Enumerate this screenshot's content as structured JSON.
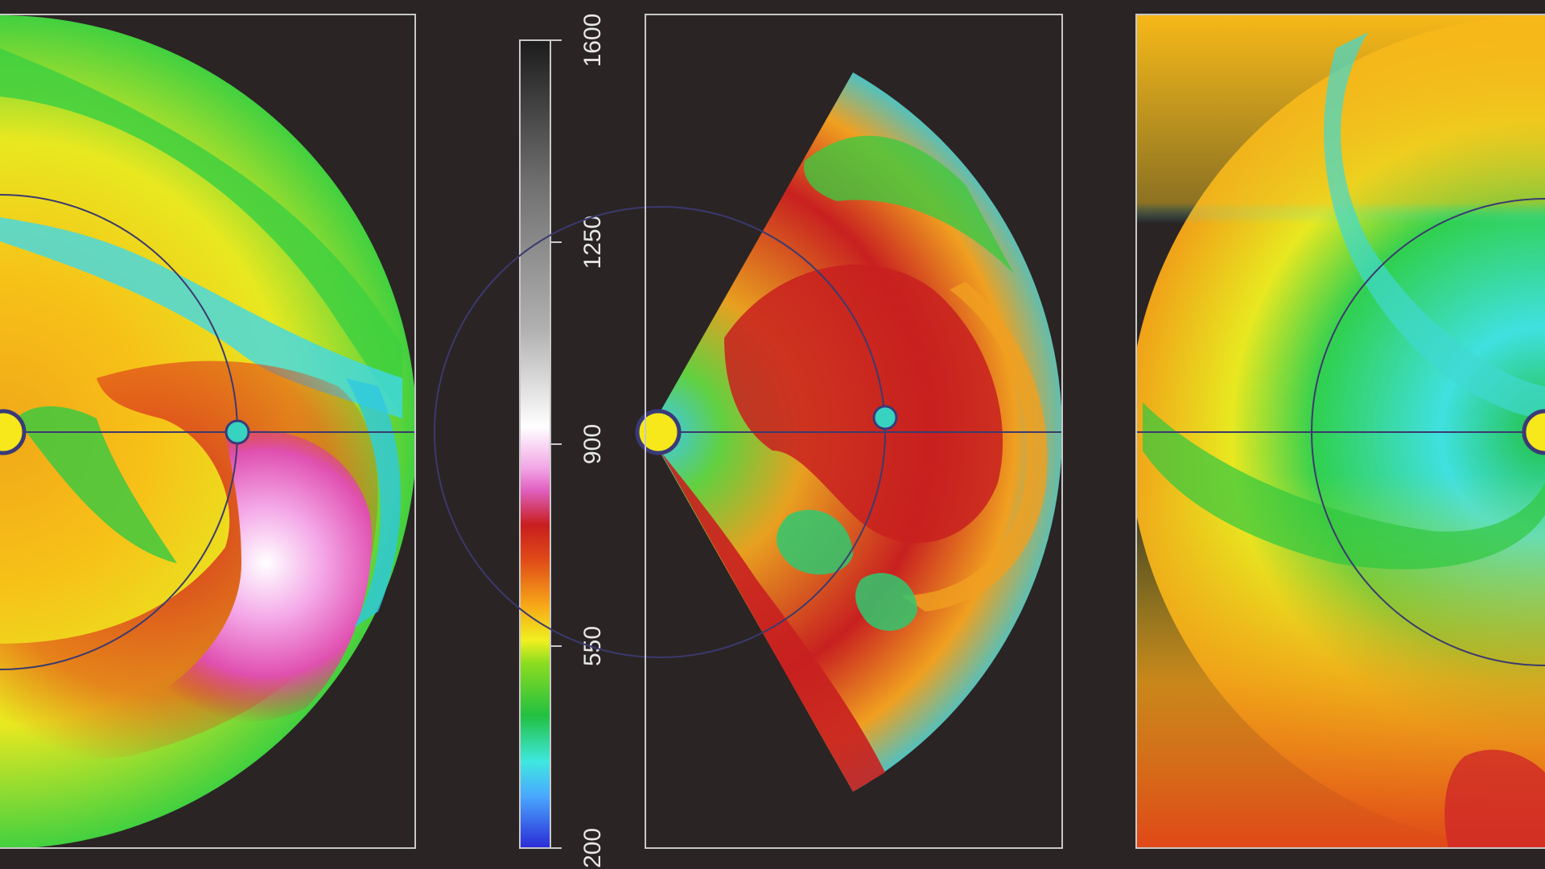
{
  "colors": {
    "background": "#2a2424",
    "frame": "#c8c8c8",
    "orbit_line": "#3b3a6e",
    "sun": "#f6e81a",
    "sun_outline": "#3a3a78",
    "earth": "#37d2c0"
  },
  "colorbar": {
    "ticks": [
      "200",
      "550",
      "900",
      "1250",
      "1600"
    ],
    "stops": [
      {
        "value": 200,
        "color": "#2b2bd6"
      },
      {
        "value": 290,
        "color": "#4aa8ff"
      },
      {
        "value": 350,
        "color": "#3fe8e0"
      },
      {
        "value": 430,
        "color": "#22c040"
      },
      {
        "value": 520,
        "color": "#8cdc20"
      },
      {
        "value": 560,
        "color": "#f0f020"
      },
      {
        "value": 620,
        "color": "#f7a818"
      },
      {
        "value": 700,
        "color": "#e04a18"
      },
      {
        "value": 760,
        "color": "#c81e1e"
      },
      {
        "value": 820,
        "color": "#e060c0"
      },
      {
        "value": 860,
        "color": "#f2a8e6"
      },
      {
        "value": 930,
        "color": "#ffffff"
      },
      {
        "value": 1100,
        "color": "#b0b0b0"
      },
      {
        "value": 1350,
        "color": "#707070"
      },
      {
        "value": 1600,
        "color": "#1c1c1c"
      }
    ]
  },
  "panels": [
    {
      "name": "left-panel",
      "view": "ecliptic-plane"
    },
    {
      "name": "middle-panel",
      "view": "meridional-plane"
    },
    {
      "name": "right-panel",
      "view": "ecliptic-plane-later"
    }
  ]
}
